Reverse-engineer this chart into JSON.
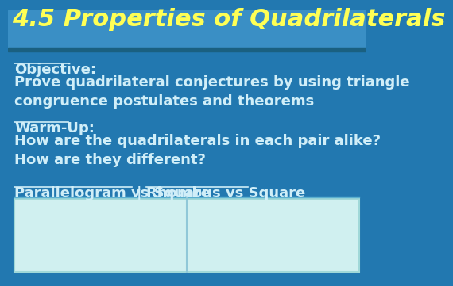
{
  "title": "4.5 Properties of Quadrilaterals",
  "title_color": "#FFFF55",
  "title_fontsize": 22,
  "bg_color": "#2278b0",
  "box_color": "#d0f0f0",
  "text_color": "#d0eef8",
  "objective_label": "Objective:",
  "objective_text": "Prove quadrilateral conjectures by using triangle\ncongruence postulates and theorems",
  "warmup_label": "Warm-Up:",
  "warmup_text": "How are the quadrilaterals in each pair alike?\nHow are they different?",
  "link1": "Parallelogram vs Square",
  "link2": "Rhombus vs Square",
  "separator": "|",
  "text_fontsize": 13,
  "label_fontsize": 13,
  "link_fontsize": 13
}
